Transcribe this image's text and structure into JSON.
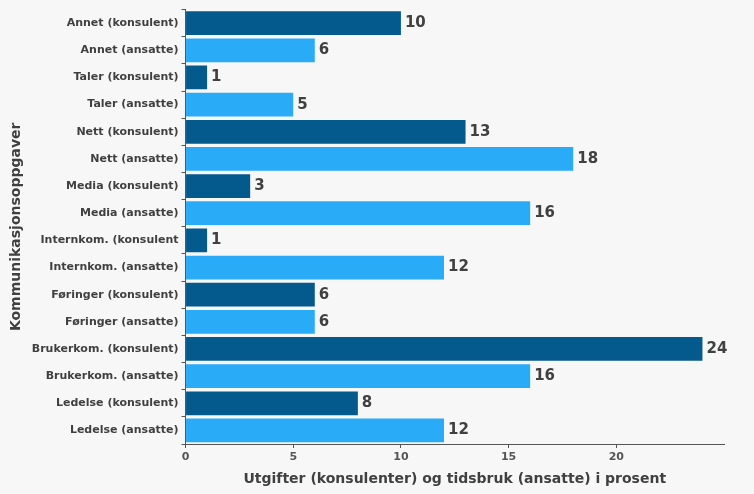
{
  "chart_data": {
    "type": "bar",
    "orientation": "horizontal",
    "x_label": "Utgifter (konsulenter) og tidsbruk (ansatte) i prosent",
    "y_label": "Kommunikasjonsoppgaver",
    "categories": [
      "Annet (konsulent)",
      "Annet (ansatte)",
      "Taler (konsulent)",
      "Taler (ansatte)",
      "Nett (konsulent)",
      "Nett (ansatte)",
      "Media (konsulent)",
      "Media (ansatte)",
      "Internkom. (konsulent",
      "Internkom. (ansatte)",
      "Føringer (konsulent)",
      "Føringer (ansatte)",
      "Brukerkom. (konsulent)",
      "Brukerkom. (ansatte)",
      "Ledelse (konsulent)",
      "Ledelse (ansatte)"
    ],
    "values": [
      10,
      6,
      1,
      5,
      13,
      18,
      3,
      16,
      1,
      12,
      6,
      6,
      24,
      16,
      8,
      12
    ],
    "colors": [
      "#045a8d",
      "#29abf8",
      "#045a8d",
      "#29abf8",
      "#045a8d",
      "#29abf8",
      "#045a8d",
      "#29abf8",
      "#045a8d",
      "#29abf8",
      "#045a8d",
      "#29abf8",
      "#045a8d",
      "#29abf8",
      "#045a8d",
      "#29abf8"
    ],
    "xlim": [
      0,
      25
    ],
    "xticks": [
      0,
      5,
      10,
      15,
      20
    ],
    "grid": false,
    "data_labels": true
  }
}
